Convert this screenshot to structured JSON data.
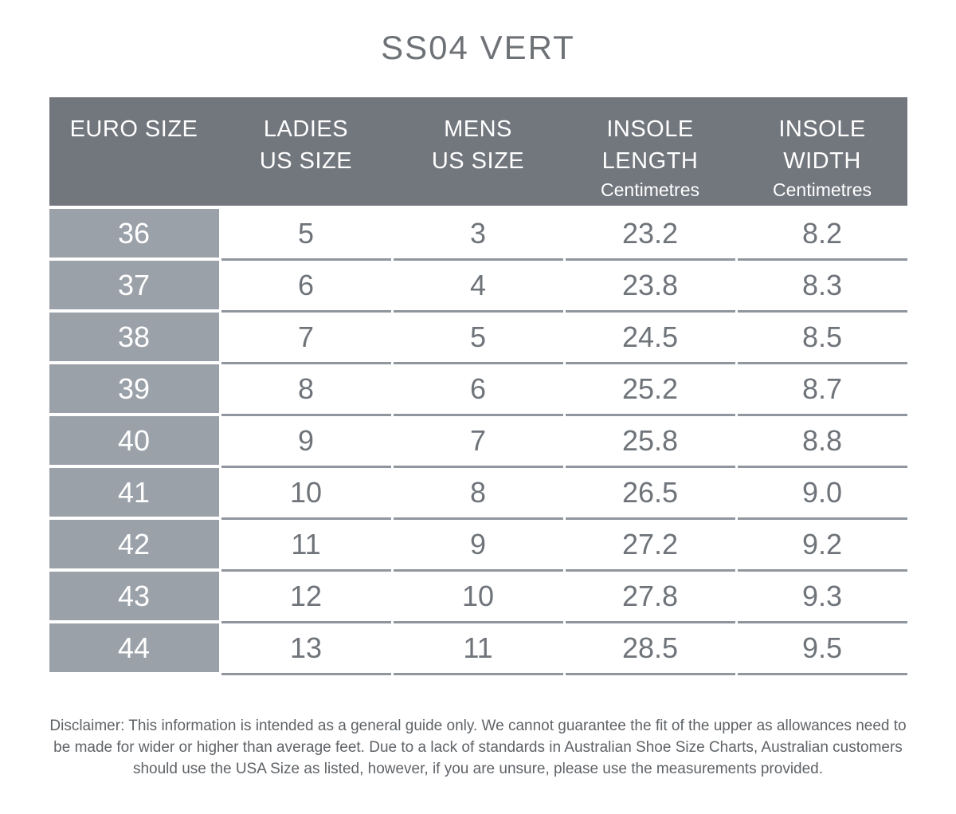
{
  "page": {
    "title": "SS04 VERT"
  },
  "colors": {
    "header_bg": "#72767d",
    "row_label_bg": "#9ba1a9",
    "separator_line": "#8f969d",
    "header_text": "#ffffff",
    "data_text": "#6f747a",
    "title_text": "#6e7277",
    "disclaimer_text": "#5f6367",
    "page_bg": "#ffffff"
  },
  "table": {
    "columns": [
      {
        "line1": "EURO SIZE",
        "line2": "",
        "sub": ""
      },
      {
        "line1": "LADIES",
        "line2": "US SIZE",
        "sub": ""
      },
      {
        "line1": "MENS",
        "line2": "US SIZE",
        "sub": ""
      },
      {
        "line1": "INSOLE",
        "line2": "LENGTH",
        "sub": "Centimetres"
      },
      {
        "line1": "INSOLE",
        "line2": "WIDTH",
        "sub": "Centimetres"
      }
    ],
    "rows": [
      {
        "euro": "36",
        "ladies": "5",
        "mens": "3",
        "length": "23.2",
        "width": "8.2"
      },
      {
        "euro": "37",
        "ladies": "6",
        "mens": "4",
        "length": "23.8",
        "width": "8.3"
      },
      {
        "euro": "38",
        "ladies": "7",
        "mens": "5",
        "length": "24.5",
        "width": "8.5"
      },
      {
        "euro": "39",
        "ladies": "8",
        "mens": "6",
        "length": "25.2",
        "width": "8.7"
      },
      {
        "euro": "40",
        "ladies": "9",
        "mens": "7",
        "length": "25.8",
        "width": "8.8"
      },
      {
        "euro": "41",
        "ladies": "10",
        "mens": "8",
        "length": "26.5",
        "width": "9.0"
      },
      {
        "euro": "42",
        "ladies": "11",
        "mens": "9",
        "length": "27.2",
        "width": "9.2"
      },
      {
        "euro": "43",
        "ladies": "12",
        "mens": "10",
        "length": "27.8",
        "width": "9.3"
      },
      {
        "euro": "44",
        "ladies": "13",
        "mens": "11",
        "length": "28.5",
        "width": "9.5"
      }
    ]
  },
  "disclaimer": {
    "text": "Disclaimer: This information is intended as a general guide only. We cannot guarantee the fit of the upper as allowances need to be made for wider or higher than average feet. Due to a lack of standards in Australian Shoe Size Charts, Australian customers should use the USA Size as listed, however, if you are unsure, please use the measurements provided."
  },
  "chart_data": {
    "type": "table",
    "title": "SS04 VERT",
    "columns": [
      "EURO SIZE",
      "LADIES US SIZE",
      "MENS US SIZE",
      "INSOLE LENGTH Centimetres",
      "INSOLE WIDTH Centimetres"
    ],
    "rows": [
      [
        "36",
        "5",
        "3",
        "23.2",
        "8.2"
      ],
      [
        "37",
        "6",
        "4",
        "23.8",
        "8.3"
      ],
      [
        "38",
        "7",
        "5",
        "24.5",
        "8.5"
      ],
      [
        "39",
        "8",
        "6",
        "25.2",
        "8.7"
      ],
      [
        "40",
        "9",
        "7",
        "25.8",
        "8.8"
      ],
      [
        "41",
        "10",
        "8",
        "26.5",
        "9.0"
      ],
      [
        "42",
        "11",
        "9",
        "27.2",
        "9.2"
      ],
      [
        "43",
        "12",
        "10",
        "27.8",
        "9.3"
      ],
      [
        "44",
        "13",
        "11",
        "28.5",
        "9.5"
      ]
    ]
  }
}
